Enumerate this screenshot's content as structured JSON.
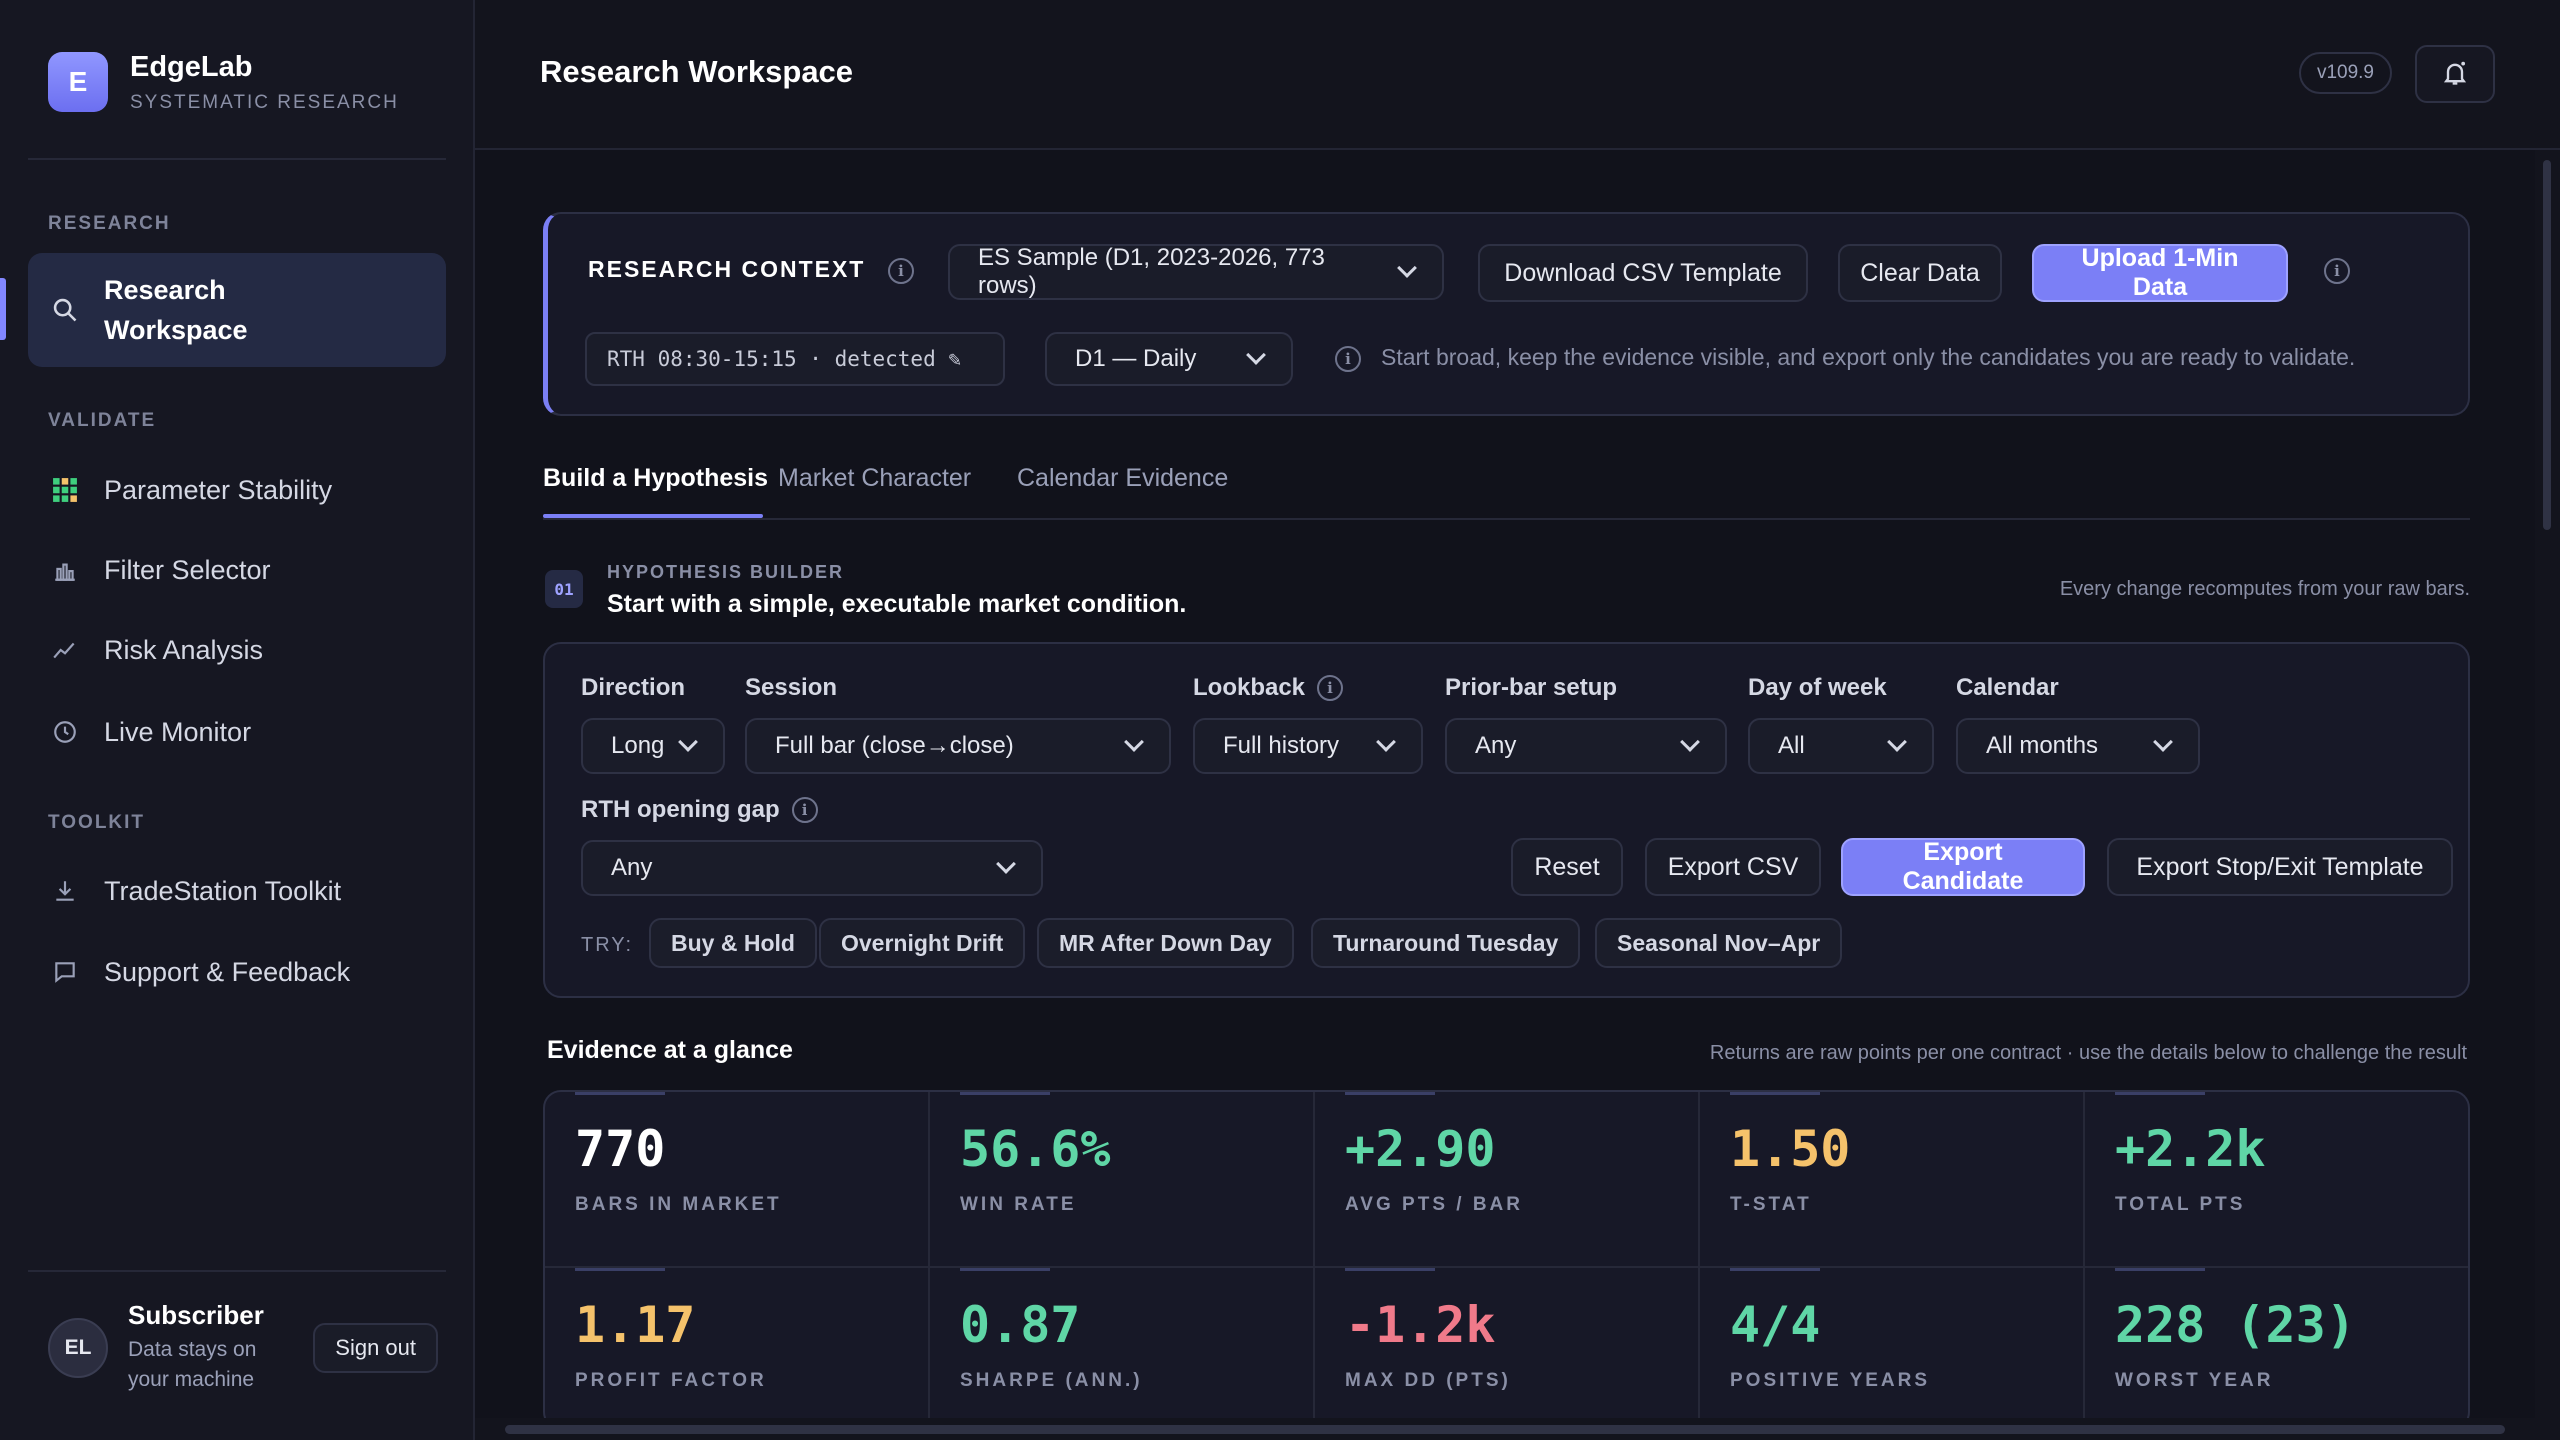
{
  "brand": {
    "logo_letter": "E",
    "name": "EdgeLab",
    "subtitle": "SYSTEMATIC RESEARCH"
  },
  "sidebar": {
    "sections": {
      "research": "RESEARCH",
      "validate": "VALIDATE",
      "toolkit": "TOOLKIT"
    },
    "items": [
      {
        "label": "Research Workspace",
        "icon": "search-icon",
        "active": true
      },
      {
        "label": "Parameter Stability",
        "icon": "grid-icon"
      },
      {
        "label": "Filter Selector",
        "icon": "bar-chart-icon"
      },
      {
        "label": "Risk Analysis",
        "icon": "trend-line-icon"
      },
      {
        "label": "Live Monitor",
        "icon": "clock-icon"
      },
      {
        "label": "TradeStation Toolkit",
        "icon": "download-icon"
      },
      {
        "label": "Support & Feedback",
        "icon": "chat-icon"
      }
    ],
    "user": {
      "initials": "EL",
      "name": "Subscriber",
      "note_line1": "Data stays on",
      "note_line2": "your machine",
      "signout_label": "Sign out"
    }
  },
  "topbar": {
    "title": "Research Workspace",
    "version": "v109.9",
    "notification_icon": "bell-icon"
  },
  "context": {
    "title": "RESEARCH CONTEXT",
    "dataset_select": "ES Sample (D1, 2023-2026, 773 rows)",
    "download_label": "Download CSV Template",
    "clear_label": "Clear Data",
    "upload_label": "Upload 1-Min Data",
    "session_chip": "RTH 08:30-15:15 · detected ✎",
    "timeframe_select": "D1 — Daily",
    "hint": "Start broad, keep the evidence visible, and export only the candidates you are ready to validate."
  },
  "tabs": [
    "Build a Hypothesis",
    "Market Character",
    "Calendar Evidence"
  ],
  "builder": {
    "step": "01",
    "kicker": "HYPOTHESIS BUILDER",
    "title": "Start with a simple, executable market condition.",
    "note": "Every change recomputes from your raw bars.",
    "fields": {
      "direction": {
        "label": "Direction",
        "value": "Long"
      },
      "session": {
        "label": "Session",
        "value": "Full bar (close→close)"
      },
      "lookback": {
        "label": "Lookback",
        "value": "Full history"
      },
      "prior_bar": {
        "label": "Prior-bar setup",
        "value": "Any"
      },
      "day_of_week": {
        "label": "Day of week",
        "value": "All"
      },
      "calendar": {
        "label": "Calendar",
        "value": "All months"
      },
      "rth_gap": {
        "label": "RTH opening gap",
        "value": "Any"
      }
    },
    "actions": {
      "reset": "Reset",
      "export_csv": "Export CSV",
      "export_candidate": "Export Candidate",
      "export_stop": "Export Stop/Exit Template"
    },
    "try_label": "TRY:",
    "presets": [
      "Buy & Hold",
      "Overnight Drift",
      "MR After Down Day",
      "Turnaround Tuesday",
      "Seasonal Nov–Apr"
    ]
  },
  "evidence": {
    "title": "Evidence at a glance",
    "note": "Returns are raw points per one contract · use the details below to challenge the result",
    "stats": [
      {
        "value": "770",
        "label": "BARS IN MARKET",
        "color": "#ffffff"
      },
      {
        "value": "56.6%",
        "label": "WIN RATE",
        "color": "#5fd6a6"
      },
      {
        "value": "+2.90",
        "label": "AVG PTS / BAR",
        "color": "#5fd6a6"
      },
      {
        "value": "1.50",
        "label": "T-STAT",
        "color": "#f5c26b"
      },
      {
        "value": "+2.2k",
        "label": "TOTAL PTS",
        "color": "#5fd6a6"
      },
      {
        "value": "1.17",
        "label": "PROFIT FACTOR",
        "color": "#f5c26b"
      },
      {
        "value": "0.87",
        "label": "SHARPE (ANN.)",
        "color": "#5fd6a6"
      },
      {
        "value": "-1.2k",
        "label": "MAX DD (PTS)",
        "color": "#f07a8a"
      },
      {
        "value": "4/4",
        "label": "POSITIVE YEARS",
        "color": "#5fd6a6"
      },
      {
        "value": "228 (23)",
        "label": "WORST YEAR",
        "color": "#5fd6a6"
      }
    ]
  },
  "colors": {
    "accent": "#7b7ff6",
    "positive": "#5fd6a6",
    "warning": "#f5c26b",
    "negative": "#f07a8a",
    "background": "#11121b"
  }
}
